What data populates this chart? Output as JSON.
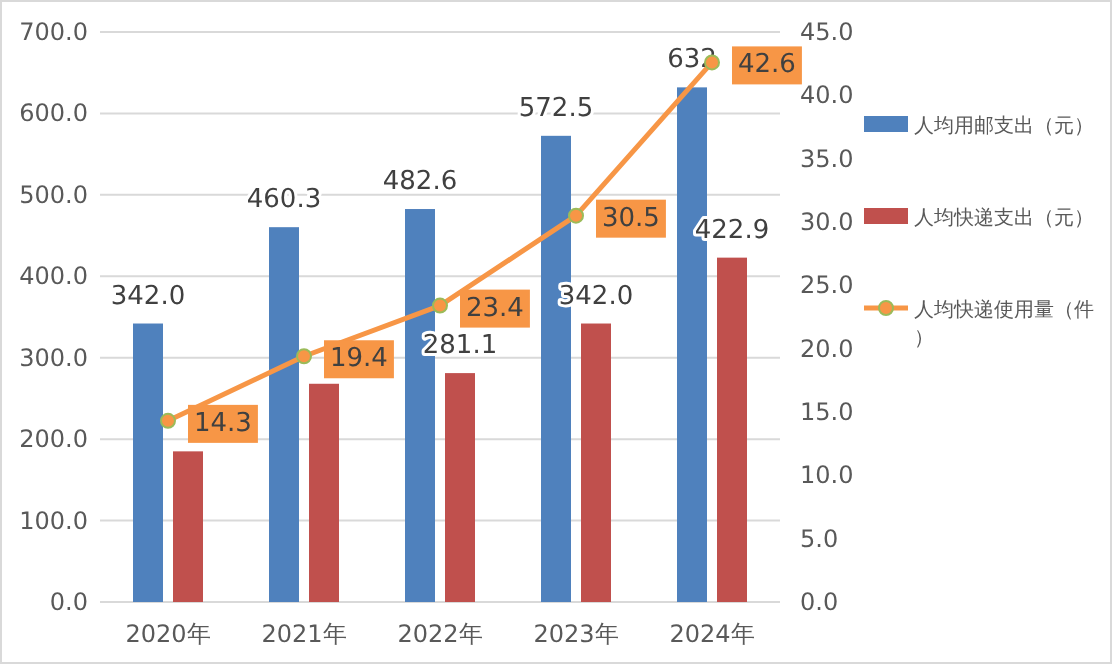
{
  "chart_data": {
    "type": "bar",
    "categories": [
      "2020年",
      "2021年",
      "2022年",
      "2023年",
      "2024年"
    ],
    "series": [
      {
        "name": "人均用邮支出（元）",
        "color": "#4f81bd",
        "values": [
          342.0,
          460.3,
          482.6,
          572.5,
          632
        ],
        "value_labels": [
          "342.0",
          "460.3",
          "482.6",
          "572.5",
          "632"
        ]
      },
      {
        "name": "人均快递支出（元）",
        "color": "#c0504d",
        "values": [
          185,
          268,
          281.1,
          342.0,
          422.9
        ],
        "value_labels": [
          null,
          null,
          "281.1",
          "342.0",
          "422.9"
        ]
      },
      {
        "name": "人均快递使用量（件）",
        "color": "#f79646",
        "type": "line",
        "axis": "y2",
        "marker": "circle",
        "values": [
          14.3,
          19.4,
          23.4,
          30.5,
          42.6
        ],
        "value_labels": [
          "14.3",
          "19.4",
          "23.4",
          "30.5",
          "42.6"
        ]
      }
    ],
    "ylim": [
      0,
      700
    ],
    "yticks": [
      {
        "value": 0,
        "label": "0.0"
      },
      {
        "value": 100,
        "label": "100.0"
      },
      {
        "value": 200,
        "label": "200.0"
      },
      {
        "value": 300,
        "label": "300.0"
      },
      {
        "value": 400,
        "label": "400.0"
      },
      {
        "value": 500,
        "label": "500.0"
      },
      {
        "value": 600,
        "label": "600.0"
      },
      {
        "value": 700,
        "label": "700.0"
      }
    ],
    "y2lim": [
      0,
      45
    ],
    "y2ticks": [
      {
        "value": 0,
        "label": "0.0"
      },
      {
        "value": 5,
        "label": "5.0"
      },
      {
        "value": 10,
        "label": "10.0"
      },
      {
        "value": 15,
        "label": "15.0"
      },
      {
        "value": 20,
        "label": "20.0"
      },
      {
        "value": 25,
        "label": "25.0"
      },
      {
        "value": 30,
        "label": "30.0"
      },
      {
        "value": 35,
        "label": "35.0"
      },
      {
        "value": 40,
        "label": "40.0"
      },
      {
        "value": 45,
        "label": "45.0"
      }
    ],
    "grid": "y",
    "legend": "right"
  }
}
